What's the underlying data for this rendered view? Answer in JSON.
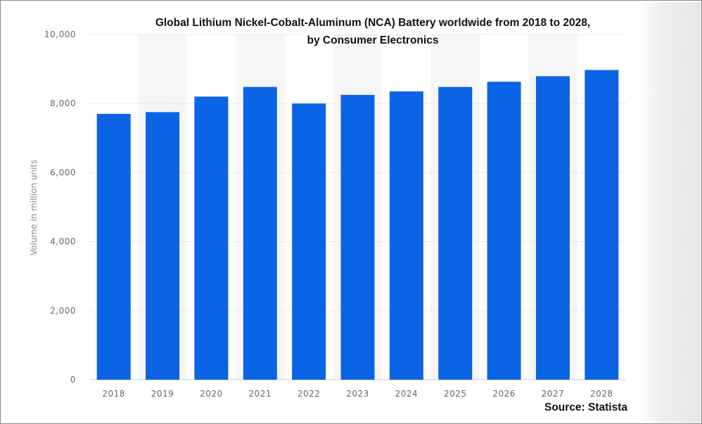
{
  "chart_data": {
    "type": "bar",
    "title_line1": "Global Lithium Nickel-Cobalt-Aluminum (NCA) Battery worldwide from 2018 to 2028,",
    "title_line2": "by Consumer Electronics",
    "categories": [
      "2018",
      "2019",
      "2020",
      "2021",
      "2022",
      "2023",
      "2024",
      "2025",
      "2026",
      "2027",
      "2028"
    ],
    "values": [
      7700,
      7750,
      8200,
      8480,
      8000,
      8250,
      8350,
      8480,
      8630,
      8790,
      8970
    ],
    "ylabel": "Volume in million units",
    "ylim": [
      0,
      10000
    ],
    "yticks": [
      "0",
      "2,000",
      "4,000",
      "6,000",
      "8,000",
      "10,000"
    ],
    "ytick_values": [
      0,
      2000,
      4000,
      6000,
      8000,
      10000
    ],
    "grid": true,
    "bar_color": "#0b63e5",
    "source": "Source: Statista"
  }
}
